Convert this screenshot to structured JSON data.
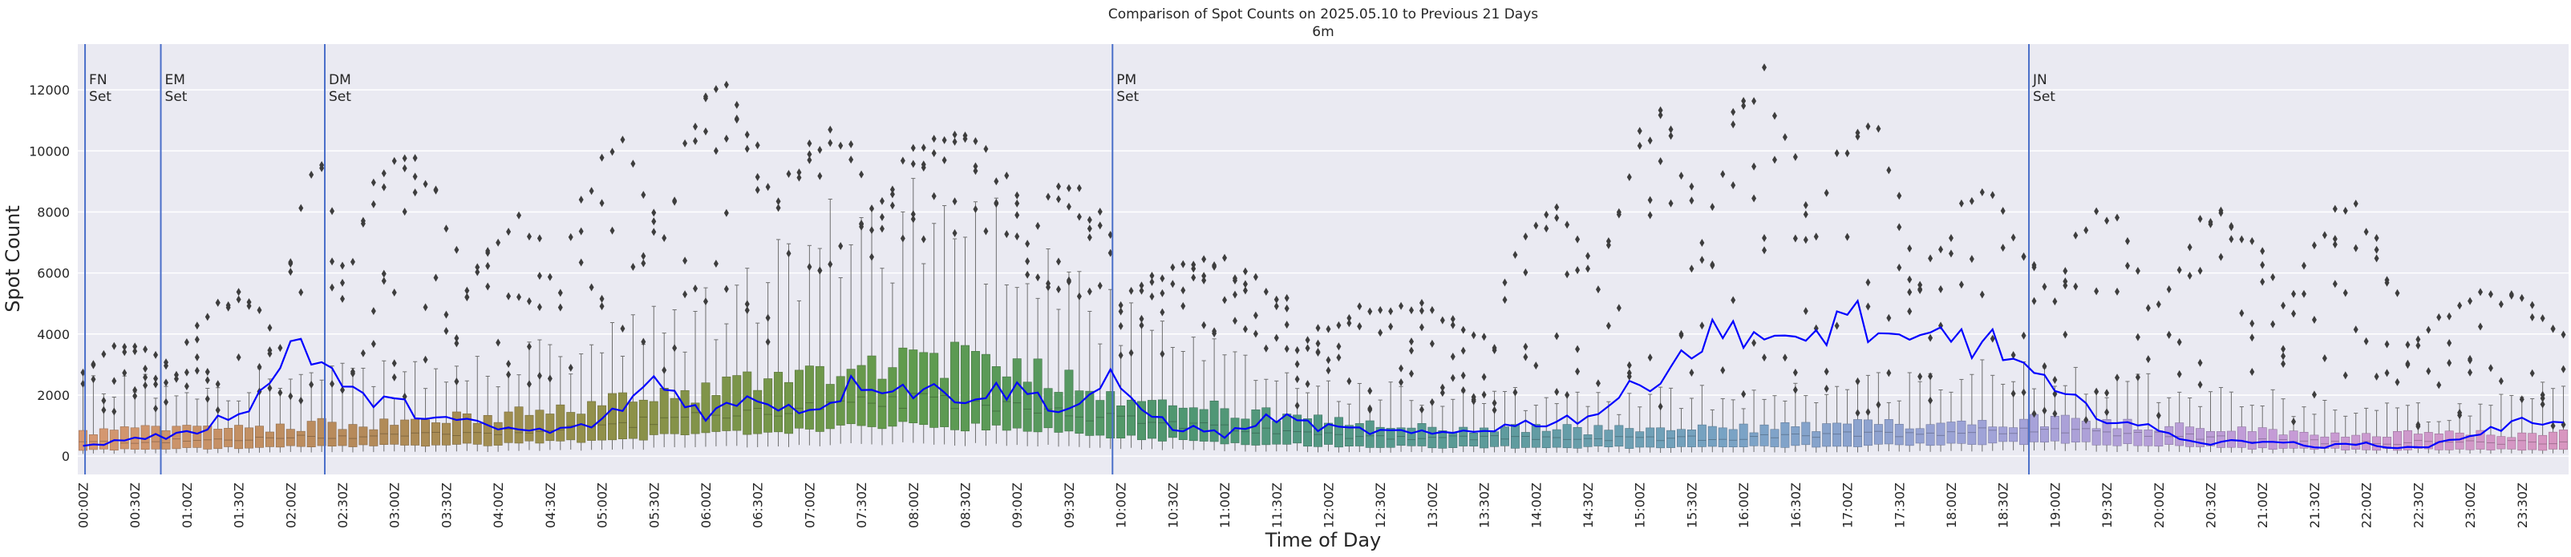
{
  "chart_data": {
    "type": "box",
    "title": "Comparison of Spot Counts on 2025.05.10 to Previous 21 Days",
    "subtitle": "6m",
    "xlabel": "Time of Day",
    "ylabel": "Spot Count",
    "ylim": [
      -600,
      13500
    ],
    "yticks": [
      0,
      2000,
      4000,
      6000,
      8000,
      10000,
      12000
    ],
    "grid": true,
    "bins_per_hour": 10,
    "total_bins": 240,
    "xtick_labels": [
      "00:00Z",
      "00:30Z",
      "01:00Z",
      "01:30Z",
      "02:00Z",
      "02:30Z",
      "03:00Z",
      "03:30Z",
      "04:00Z",
      "04:30Z",
      "05:00Z",
      "05:30Z",
      "06:00Z",
      "06:30Z",
      "07:00Z",
      "07:30Z",
      "08:00Z",
      "08:30Z",
      "09:00Z",
      "09:30Z",
      "10:00Z",
      "10:30Z",
      "11:00Z",
      "11:30Z",
      "12:00Z",
      "12:30Z",
      "13:00Z",
      "13:30Z",
      "14:00Z",
      "14:30Z",
      "15:00Z",
      "15:30Z",
      "16:00Z",
      "16:30Z",
      "17:00Z",
      "17:30Z",
      "18:00Z",
      "18:30Z",
      "19:00Z",
      "19:30Z",
      "20:00Z",
      "20:30Z",
      "21:00Z",
      "21:30Z",
      "22:00Z",
      "22:30Z",
      "23:00Z",
      "23:30Z"
    ],
    "hourly_profile": {
      "hours": [
        0,
        1,
        2,
        3,
        4,
        5,
        6,
        7,
        8,
        9,
        10,
        11,
        12,
        13,
        14,
        15,
        16,
        17,
        18,
        19,
        20,
        21,
        22,
        23,
        24
      ],
      "median": [
        450,
        500,
        600,
        700,
        800,
        1000,
        1300,
        1600,
        1800,
        1700,
        1200,
        900,
        700,
        600,
        600,
        550,
        600,
        700,
        800,
        900,
        700,
        500,
        450,
        450,
        450
      ],
      "q1": [
        200,
        250,
        300,
        350,
        400,
        550,
        700,
        900,
        1000,
        900,
        650,
        450,
        350,
        300,
        300,
        280,
        300,
        350,
        400,
        450,
        350,
        250,
        220,
        220,
        220
      ],
      "q3": [
        800,
        900,
        1000,
        1100,
        1300,
        1700,
        2200,
        2800,
        3200,
        3000,
        2000,
        1500,
        1100,
        900,
        900,
        850,
        900,
        1000,
        1100,
        1200,
        1000,
        800,
        700,
        700,
        800
      ],
      "whisker_high": [
        2200,
        2300,
        2500,
        2500,
        2800,
        3500,
        4500,
        6500,
        7800,
        7000,
        4200,
        3000,
        2200,
        1800,
        1800,
        1800,
        2000,
        2200,
        2500,
        2800,
        2300,
        1800,
        1500,
        1400,
        2200
      ]
    },
    "today_series_keypoints": [
      {
        "hour": 0.0,
        "value": 300
      },
      {
        "hour": 0.5,
        "value": 600
      },
      {
        "hour": 1.0,
        "value": 700
      },
      {
        "hour": 1.5,
        "value": 1500
      },
      {
        "hour": 1.85,
        "value": 2400
      },
      {
        "hour": 2.0,
        "value": 4000
      },
      {
        "hour": 2.3,
        "value": 3100
      },
      {
        "hour": 2.6,
        "value": 2000
      },
      {
        "hour": 3.0,
        "value": 1700
      },
      {
        "hour": 3.5,
        "value": 1200
      },
      {
        "hour": 4.0,
        "value": 900
      },
      {
        "hour": 4.5,
        "value": 800
      },
      {
        "hour": 5.0,
        "value": 1100
      },
      {
        "hour": 5.5,
        "value": 2500
      },
      {
        "hour": 6.0,
        "value": 1400
      },
      {
        "hour": 6.5,
        "value": 1900
      },
      {
        "hour": 7.0,
        "value": 1500
      },
      {
        "hour": 7.5,
        "value": 2500
      },
      {
        "hour": 8.0,
        "value": 2200
      },
      {
        "hour": 8.5,
        "value": 2000
      },
      {
        "hour": 9.0,
        "value": 2200
      },
      {
        "hour": 9.5,
        "value": 1500
      },
      {
        "hour": 9.9,
        "value": 2600
      },
      {
        "hour": 10.0,
        "value": 1900
      },
      {
        "hour": 10.5,
        "value": 1000
      },
      {
        "hour": 11.0,
        "value": 700
      },
      {
        "hour": 11.5,
        "value": 1300
      },
      {
        "hour": 12.0,
        "value": 900
      },
      {
        "hour": 12.5,
        "value": 800
      },
      {
        "hour": 13.0,
        "value": 700
      },
      {
        "hour": 13.5,
        "value": 900
      },
      {
        "hour": 14.0,
        "value": 1100
      },
      {
        "hour": 14.5,
        "value": 1300
      },
      {
        "hour": 15.0,
        "value": 2300
      },
      {
        "hour": 15.5,
        "value": 3600
      },
      {
        "hour": 16.0,
        "value": 4300
      },
      {
        "hour": 16.5,
        "value": 3400
      },
      {
        "hour": 17.0,
        "value": 4800
      },
      {
        "hour": 17.5,
        "value": 3400
      },
      {
        "hour": 18.0,
        "value": 4000
      },
      {
        "hour": 18.5,
        "value": 3500
      },
      {
        "hour": 19.0,
        "value": 2000
      },
      {
        "hour": 19.5,
        "value": 1300
      },
      {
        "hour": 20.0,
        "value": 800
      },
      {
        "hour": 20.5,
        "value": 400
      },
      {
        "hour": 21.0,
        "value": 550
      },
      {
        "hour": 21.5,
        "value": 300
      },
      {
        "hour": 22.0,
        "value": 400
      },
      {
        "hour": 22.5,
        "value": 250
      },
      {
        "hour": 23.0,
        "value": 700
      },
      {
        "hour": 23.5,
        "value": 1100
      },
      {
        "hour": 23.95,
        "value": 1300
      }
    ],
    "outlier_bands": [
      {
        "from": 0.0,
        "to": 0.9,
        "low": 1400,
        "high": 3800
      },
      {
        "from": 1.0,
        "to": 1.9,
        "low": 1500,
        "high": 5500
      },
      {
        "from": 2.0,
        "to": 2.5,
        "low": 1800,
        "high": 10000
      },
      {
        "from": 2.6,
        "to": 3.6,
        "low": 1500,
        "high": 10500
      },
      {
        "from": 3.7,
        "to": 4.6,
        "low": 2200,
        "high": 8000
      },
      {
        "from": 4.7,
        "to": 5.6,
        "low": 2800,
        "high": 10500
      },
      {
        "from": 5.7,
        "to": 6.6,
        "low": 3500,
        "high": 12700
      },
      {
        "from": 6.7,
        "to": 7.6,
        "low": 6000,
        "high": 11000
      },
      {
        "from": 7.7,
        "to": 9.0,
        "low": 7000,
        "high": 10600
      },
      {
        "from": 9.1,
        "to": 9.9,
        "low": 5000,
        "high": 9000
      },
      {
        "from": 10.0,
        "to": 11.6,
        "low": 3300,
        "high": 6600
      },
      {
        "from": 11.7,
        "to": 13.6,
        "low": 1500,
        "high": 5200
      },
      {
        "from": 13.7,
        "to": 14.6,
        "low": 1200,
        "high": 8700
      },
      {
        "from": 14.7,
        "to": 15.6,
        "low": 1500,
        "high": 11500
      },
      {
        "from": 15.7,
        "to": 16.6,
        "low": 1800,
        "high": 12900
      },
      {
        "from": 16.7,
        "to": 17.6,
        "low": 1400,
        "high": 11400
      },
      {
        "from": 17.7,
        "to": 18.9,
        "low": 1300,
        "high": 8700
      },
      {
        "from": 19.0,
        "to": 19.9,
        "low": 900,
        "high": 8300
      },
      {
        "from": 20.0,
        "to": 21.2,
        "low": 1000,
        "high": 8200
      },
      {
        "from": 21.3,
        "to": 22.3,
        "low": 900,
        "high": 8500
      },
      {
        "from": 22.4,
        "to": 23.95,
        "low": 900,
        "high": 5500
      }
    ],
    "vertical_markers": [
      {
        "hour": 0.02,
        "label_line1": "FN",
        "label_line2": "Set"
      },
      {
        "hour": 0.75,
        "label_line1": "EM",
        "label_line2": "Set"
      },
      {
        "hour": 2.33,
        "label_line1": "DM",
        "label_line2": "Set"
      },
      {
        "hour": 9.92,
        "label_line1": "PM",
        "label_line2": "Set"
      },
      {
        "hour": 18.75,
        "label_line1": "JN",
        "label_line2": "Set"
      }
    ],
    "colors": {
      "plot_background": "#eaeaf2",
      "grid": "#ffffff",
      "today_line": "#0000ff",
      "marker_line": "#4a6fc9",
      "outlier": "#3d3d3d",
      "whisker": "#6e6e6e",
      "box_palette_stops": [
        "#d69872",
        "#b58a5a",
        "#8c9148",
        "#5f9b4d",
        "#4f9772",
        "#5a9a96",
        "#7aa3c6",
        "#a4a3d9",
        "#c69bd6",
        "#d896c0"
      ]
    }
  }
}
